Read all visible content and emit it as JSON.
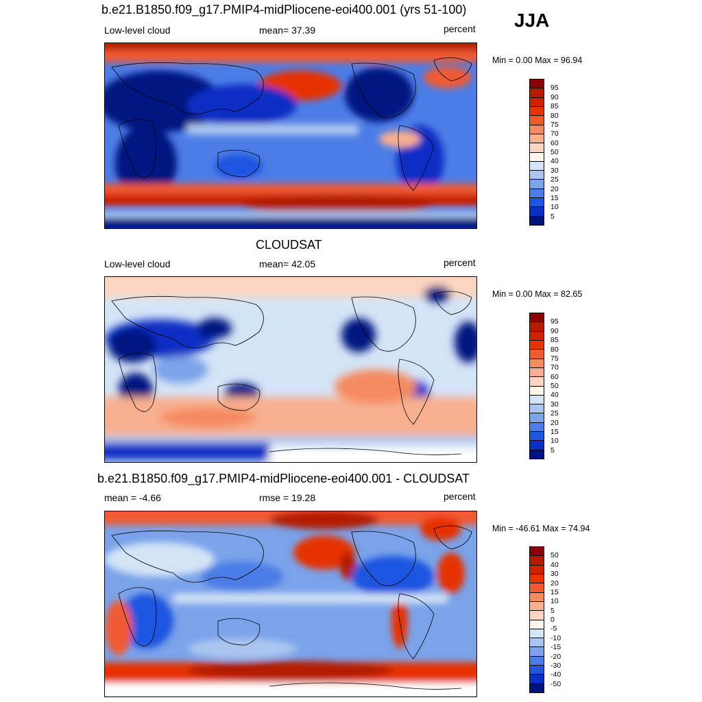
{
  "season": "JJA",
  "panels": [
    {
      "title": "b.e21.B1850.f09_g17.PMIP4-midPliocene-eoi400.001 (yrs 51-100)",
      "left_label": "Low-level cloud",
      "center_label": "mean=  37.39",
      "right_label": "percent",
      "minmax": "Min =   0.00 Max =  96.94",
      "levels": [
        "95",
        "90",
        "85",
        "80",
        "75",
        "70",
        "60",
        "50",
        "40",
        "30",
        "25",
        "20",
        "15",
        "10",
        "5"
      ],
      "colors": [
        "#8b0000",
        "#b31a00",
        "#cc2200",
        "#e63300",
        "#f05a30",
        "#f58a60",
        "#f8b090",
        "#fbd5c0",
        "#fff5ea",
        "#d4e4f7",
        "#aac6f0",
        "#7aa3ea",
        "#4c7de6",
        "#1f55e0",
        "#0a2fc4",
        "#001480"
      ]
    },
    {
      "title": "CLOUDSAT",
      "left_label": "Low-level cloud",
      "center_label": "mean=  42.05",
      "right_label": "percent",
      "minmax": "Min =   0.00 Max =  82.65",
      "levels": [
        "95",
        "90",
        "85",
        "80",
        "75",
        "70",
        "60",
        "50",
        "40",
        "30",
        "25",
        "20",
        "15",
        "10",
        "5"
      ],
      "colors": [
        "#8b0000",
        "#b31a00",
        "#cc2200",
        "#e63300",
        "#f05a30",
        "#f58a60",
        "#f8b090",
        "#fbd5c0",
        "#fff5ea",
        "#d4e4f7",
        "#aac6f0",
        "#7aa3ea",
        "#4c7de6",
        "#1f55e0",
        "#0a2fc4",
        "#001480"
      ]
    },
    {
      "title": "b.e21.B1850.f09_g17.PMIP4-midPliocene-eoi400.001 - CLOUDSAT",
      "left_label": "mean =  -4.66",
      "center_label": "rmse =  19.28",
      "right_label": "percent",
      "minmax": "Min = -46.61 Max =  74.94",
      "levels": [
        "50",
        "40",
        "30",
        "20",
        "15",
        "10",
        "5",
        "0",
        "-5",
        "-10",
        "-15",
        "-20",
        "-30",
        "-40",
        "-50"
      ],
      "colors": [
        "#8b0000",
        "#b31a00",
        "#cc2200",
        "#e63300",
        "#f05a30",
        "#f58a60",
        "#f8b090",
        "#fbd5c0",
        "#fff5ea",
        "#d4e4f7",
        "#aac6f0",
        "#7aa3ea",
        "#4c7de6",
        "#1f55e0",
        "#0a2fc4",
        "#001480"
      ]
    }
  ]
}
